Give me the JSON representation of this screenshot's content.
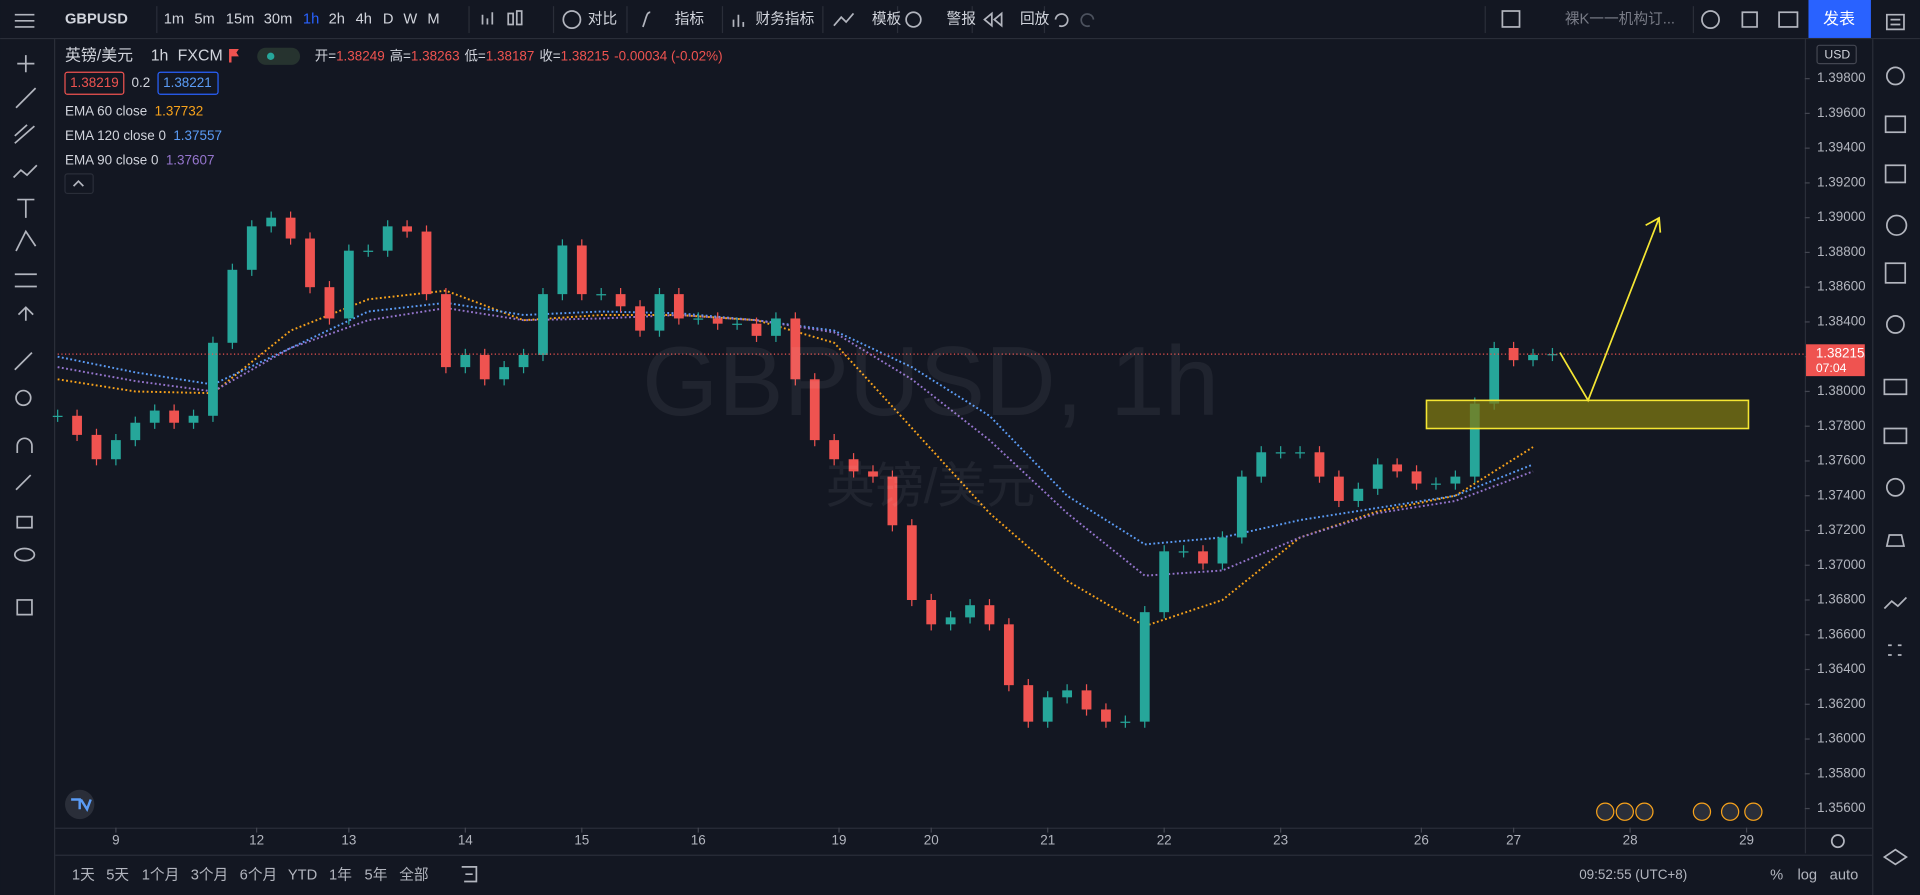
{
  "toolbar": {
    "symbol": "GBPUSD",
    "intervals": [
      "1m",
      "5m",
      "15m",
      "30m",
      "1h",
      "2h",
      "4h",
      "D",
      "W",
      "M"
    ],
    "active_interval": "1h",
    "tools": [
      "对比",
      "指标",
      "财务指标",
      "模板",
      "警报",
      "回放"
    ],
    "layout": "裸K一一机构订...",
    "publish": "发表"
  },
  "legend": {
    "name": "英镑/美元",
    "interval": "1h",
    "exchange": "FXCM",
    "ohlc": [
      {
        "label": "开=",
        "value": "1.38249"
      },
      {
        "label": "高=",
        "value": "1.38263"
      },
      {
        "label": "低=",
        "value": "1.38187"
      },
      {
        "label": "收=",
        "value": "1.38215"
      }
    ],
    "change": "-0.00034 (-0.02%)",
    "sell": "1.38219",
    "spread": "0.2",
    "buy": "1.38221",
    "indicators": [
      {
        "name": "EMA 60 close",
        "value": "1.37732",
        "color": "#f7a21b",
        "values": [
          1.3807,
          1.38,
          1.3799,
          1.3835,
          1.3853,
          1.3858,
          1.3841,
          1.3844,
          1.3844,
          1.3841,
          1.3828,
          1.3779,
          1.373,
          1.3691,
          1.3665,
          1.368,
          1.3716,
          1.3731,
          1.374,
          1.3768
        ]
      },
      {
        "name": "EMA 120 close 0",
        "value": "1.37557",
        "color": "#5b9cf6",
        "values": [
          1.382,
          1.3811,
          1.3804,
          1.3825,
          1.3846,
          1.3851,
          1.3844,
          1.3846,
          1.3845,
          1.3841,
          1.3835,
          1.3814,
          1.3786,
          1.374,
          1.3712,
          1.3716,
          1.3726,
          1.3733,
          1.374,
          1.3758
        ]
      },
      {
        "name": "EMA 90 close 0",
        "value": "1.37607",
        "color": "#9575cd",
        "values": [
          1.3814,
          1.3806,
          1.38,
          1.3825,
          1.3841,
          1.3848,
          1.3841,
          1.3842,
          1.3844,
          1.3841,
          1.3834,
          1.3807,
          1.3772,
          1.373,
          1.3694,
          1.3697,
          1.3716,
          1.373,
          1.3737,
          1.3754
        ]
      }
    ]
  },
  "watermark": {
    "title": "GBPUSD, 1h",
    "subtitle": "英镑/美元"
  },
  "chart_data": {
    "type": "candlestick",
    "up_color": "#26a69a",
    "down_color": "#ef5350",
    "closes": [
      1.3786,
      1.3775,
      1.3761,
      1.3772,
      1.3782,
      1.3789,
      1.3782,
      1.3786,
      1.3828,
      1.387,
      1.3895,
      1.39,
      1.3888,
      1.386,
      1.3842,
      1.3881,
      1.3881,
      1.3895,
      1.3892,
      1.3856,
      1.3814,
      1.3821,
      1.3807,
      1.3814,
      1.3821,
      1.3856,
      1.3884,
      1.3856,
      1.3856,
      1.3849,
      1.3835,
      1.3856,
      1.3842,
      1.3842,
      1.3839,
      1.3839,
      1.3832,
      1.3842,
      1.3807,
      1.3772,
      1.3761,
      1.3754,
      1.3751,
      1.3723,
      1.368,
      1.3666,
      1.367,
      1.3677,
      1.3666,
      1.3631,
      1.361,
      1.3624,
      1.3628,
      1.3617,
      1.361,
      1.361,
      1.3673,
      1.3708,
      1.3708,
      1.3701,
      1.3716,
      1.3751,
      1.3765,
      1.3765,
      1.3765,
      1.3751,
      1.3737,
      1.3744,
      1.3758,
      1.3754,
      1.3747,
      1.3747,
      1.3751,
      1.3793,
      1.3825,
      1.3818,
      1.3821,
      1.38215
    ],
    "xlim": [
      0,
      360
    ],
    "xticks": [
      {
        "value": 12,
        "label": "9"
      },
      {
        "value": 41,
        "label": "12"
      },
      {
        "value": 60,
        "label": "13"
      },
      {
        "value": 84,
        "label": "14"
      },
      {
        "value": 108,
        "label": "15"
      },
      {
        "value": 132,
        "label": "16"
      },
      {
        "value": 161,
        "label": "19"
      },
      {
        "value": 180,
        "label": "20"
      },
      {
        "value": 204,
        "label": "21"
      },
      {
        "value": 228,
        "label": "22"
      },
      {
        "value": 252,
        "label": "23"
      },
      {
        "value": 281,
        "label": "26"
      },
      {
        "value": 300,
        "label": "27"
      },
      {
        "value": 324,
        "label": "28"
      },
      {
        "value": 348,
        "label": "29"
      }
    ],
    "ylim": [
      1.3549,
      1.4002
    ],
    "yticks": [
      {
        "value": 1.356,
        "label": "1.35600"
      },
      {
        "value": 1.358,
        "label": "1.35800"
      },
      {
        "value": 1.36,
        "label": "1.36000"
      },
      {
        "value": 1.362,
        "label": "1.36200"
      },
      {
        "value": 1.364,
        "label": "1.36400"
      },
      {
        "value": 1.366,
        "label": "1.36600"
      },
      {
        "value": 1.368,
        "label": "1.36800"
      },
      {
        "value": 1.37,
        "label": "1.37000"
      },
      {
        "value": 1.372,
        "label": "1.37200"
      },
      {
        "value": 1.374,
        "label": "1.37400"
      },
      {
        "value": 1.376,
        "label": "1.37600"
      },
      {
        "value": 1.378,
        "label": "1.37800"
      },
      {
        "value": 1.38,
        "label": "1.38000"
      },
      {
        "value": 1.382,
        "label": "1.38200"
      },
      {
        "value": 1.384,
        "label": "1.38400"
      },
      {
        "value": 1.386,
        "label": "1.38600"
      },
      {
        "value": 1.388,
        "label": "1.38800"
      },
      {
        "value": 1.39,
        "label": "1.39000"
      },
      {
        "value": 1.392,
        "label": "1.39200"
      },
      {
        "value": 1.394,
        "label": "1.39400"
      },
      {
        "value": 1.396,
        "label": "1.39600"
      },
      {
        "value": 1.398,
        "label": "1.39800"
      }
    ],
    "currency": "USD",
    "last_price": 1.38215,
    "countdown": "07:04"
  },
  "bottom": {
    "ranges": [
      "1天",
      "5天",
      "1个月",
      "3个月",
      "6个月",
      "YTD",
      "1年",
      "5年",
      "全部"
    ],
    "clock": "09:52:55 (UTC+8)",
    "options": [
      "%",
      "log",
      "auto"
    ]
  }
}
